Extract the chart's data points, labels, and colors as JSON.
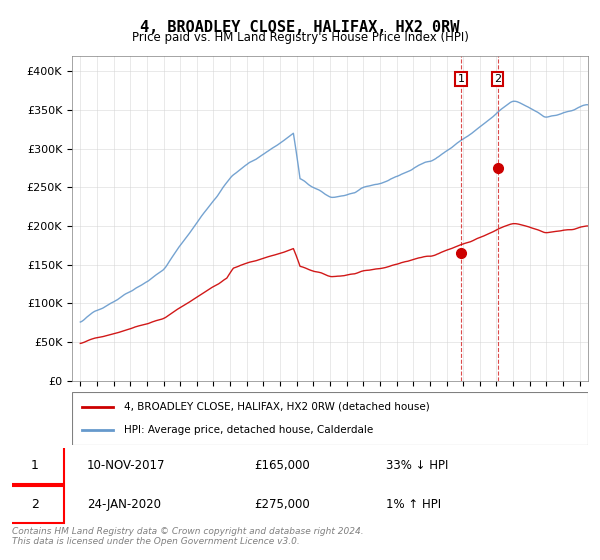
{
  "title": "4, BROADLEY CLOSE, HALIFAX, HX2 0RW",
  "subtitle": "Price paid vs. HM Land Registry's House Price Index (HPI)",
  "legend_line1": "4, BROADLEY CLOSE, HALIFAX, HX2 0RW (detached house)",
  "legend_line2": "HPI: Average price, detached house, Calderdale",
  "transaction1_label": "1",
  "transaction1_date": "10-NOV-2017",
  "transaction1_price": "£165,000",
  "transaction1_hpi": "33% ↓ HPI",
  "transaction2_label": "2",
  "transaction2_date": "24-JAN-2020",
  "transaction2_price": "£275,000",
  "transaction2_hpi": "1% ↑ HPI",
  "footer": "Contains HM Land Registry data © Crown copyright and database right 2024.\nThis data is licensed under the Open Government Licence v3.0.",
  "red_color": "#cc0000",
  "blue_color": "#6699cc",
  "marker_red": "#cc0000",
  "marker_blue": "#6699cc",
  "transaction1_year": 2017.86,
  "transaction1_value": 165000,
  "transaction2_year": 2020.07,
  "transaction2_value": 275000,
  "ylim_min": 0,
  "ylim_max": 420000,
  "xlim_min": 1994.5,
  "xlim_max": 2025.5
}
